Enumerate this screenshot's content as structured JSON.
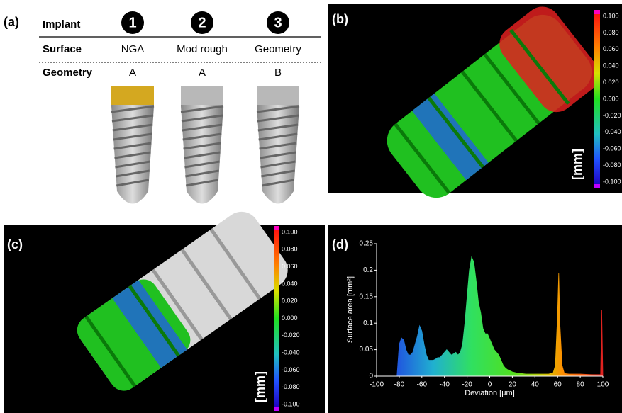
{
  "panels": {
    "a": {
      "label": "(a)",
      "rows": [
        [
          "Implant",
          "1",
          "2",
          "3"
        ],
        [
          "Surface",
          "NGA",
          "Mod rough",
          "Geometry"
        ],
        [
          "Geometry",
          "A",
          "A",
          "B"
        ]
      ]
    },
    "b": {
      "label": "(b)",
      "colorbar": {
        "ticks": [
          "0.100",
          "0.080",
          "0.060",
          "0.040",
          "0.020",
          "0.000",
          "-0.020",
          "-0.040",
          "-0.060",
          "-0.080",
          "-0.100"
        ],
        "unit": "[mm]"
      }
    },
    "c": {
      "label": "(c)",
      "colorbar": {
        "ticks": [
          "0.100",
          "0.080",
          "0.060",
          "0.040",
          "0.020",
          "0.000",
          "-0.020",
          "-0.040",
          "-0.060",
          "-0.080",
          "-0.100"
        ],
        "unit": "[mm]"
      }
    },
    "d": {
      "label": "(d)"
    }
  },
  "chart_data": {
    "type": "area",
    "xlabel": "Deviation [μm]",
    "ylabel": "Surface area [mm²]",
    "x": [
      -82,
      -80,
      -78,
      -76,
      -74,
      -72,
      -70,
      -68,
      -66,
      -64,
      -62,
      -60,
      -58,
      -56,
      -54,
      -52,
      -50,
      -48,
      -46,
      -44,
      -42,
      -40,
      -38,
      -36,
      -34,
      -32,
      -30,
      -28,
      -26,
      -24,
      -22,
      -20,
      -18,
      -16,
      -14,
      -12,
      -10,
      -8,
      -6,
      -4,
      -2,
      0,
      2,
      4,
      6,
      8,
      10,
      12,
      14,
      16,
      18,
      20,
      24,
      28,
      32,
      36,
      40,
      44,
      48,
      52,
      56,
      58,
      60,
      61,
      62,
      64,
      66,
      70,
      80,
      90,
      98,
      99,
      100
    ],
    "values": [
      0,
      0.06,
      0.072,
      0.068,
      0.05,
      0.04,
      0.04,
      0.045,
      0.06,
      0.075,
      0.095,
      0.085,
      0.06,
      0.04,
      0.03,
      0.03,
      0.03,
      0.032,
      0.035,
      0.035,
      0.04,
      0.045,
      0.05,
      0.045,
      0.04,
      0.042,
      0.045,
      0.04,
      0.045,
      0.06,
      0.1,
      0.15,
      0.2,
      0.225,
      0.215,
      0.18,
      0.14,
      0.12,
      0.09,
      0.08,
      0.08,
      0.07,
      0.06,
      0.05,
      0.045,
      0.04,
      0.03,
      0.02,
      0.015,
      0.012,
      0.01,
      0.008,
      0.006,
      0.005,
      0.004,
      0.004,
      0.004,
      0.004,
      0.004,
      0.004,
      0.006,
      0.02,
      0.12,
      0.195,
      0.1,
      0.02,
      0.005,
      0.004,
      0.004,
      0.003,
      0.003,
      0.125,
      0.003
    ],
    "xlim": [
      -100,
      100
    ],
    "xticks": [
      -100,
      -80,
      -60,
      -40,
      -20,
      0,
      20,
      40,
      60,
      80,
      100
    ],
    "ylim": [
      0,
      0.25
    ],
    "yticks": [
      0,
      0.05,
      0.1,
      0.15,
      0.2,
      0.25
    ]
  }
}
